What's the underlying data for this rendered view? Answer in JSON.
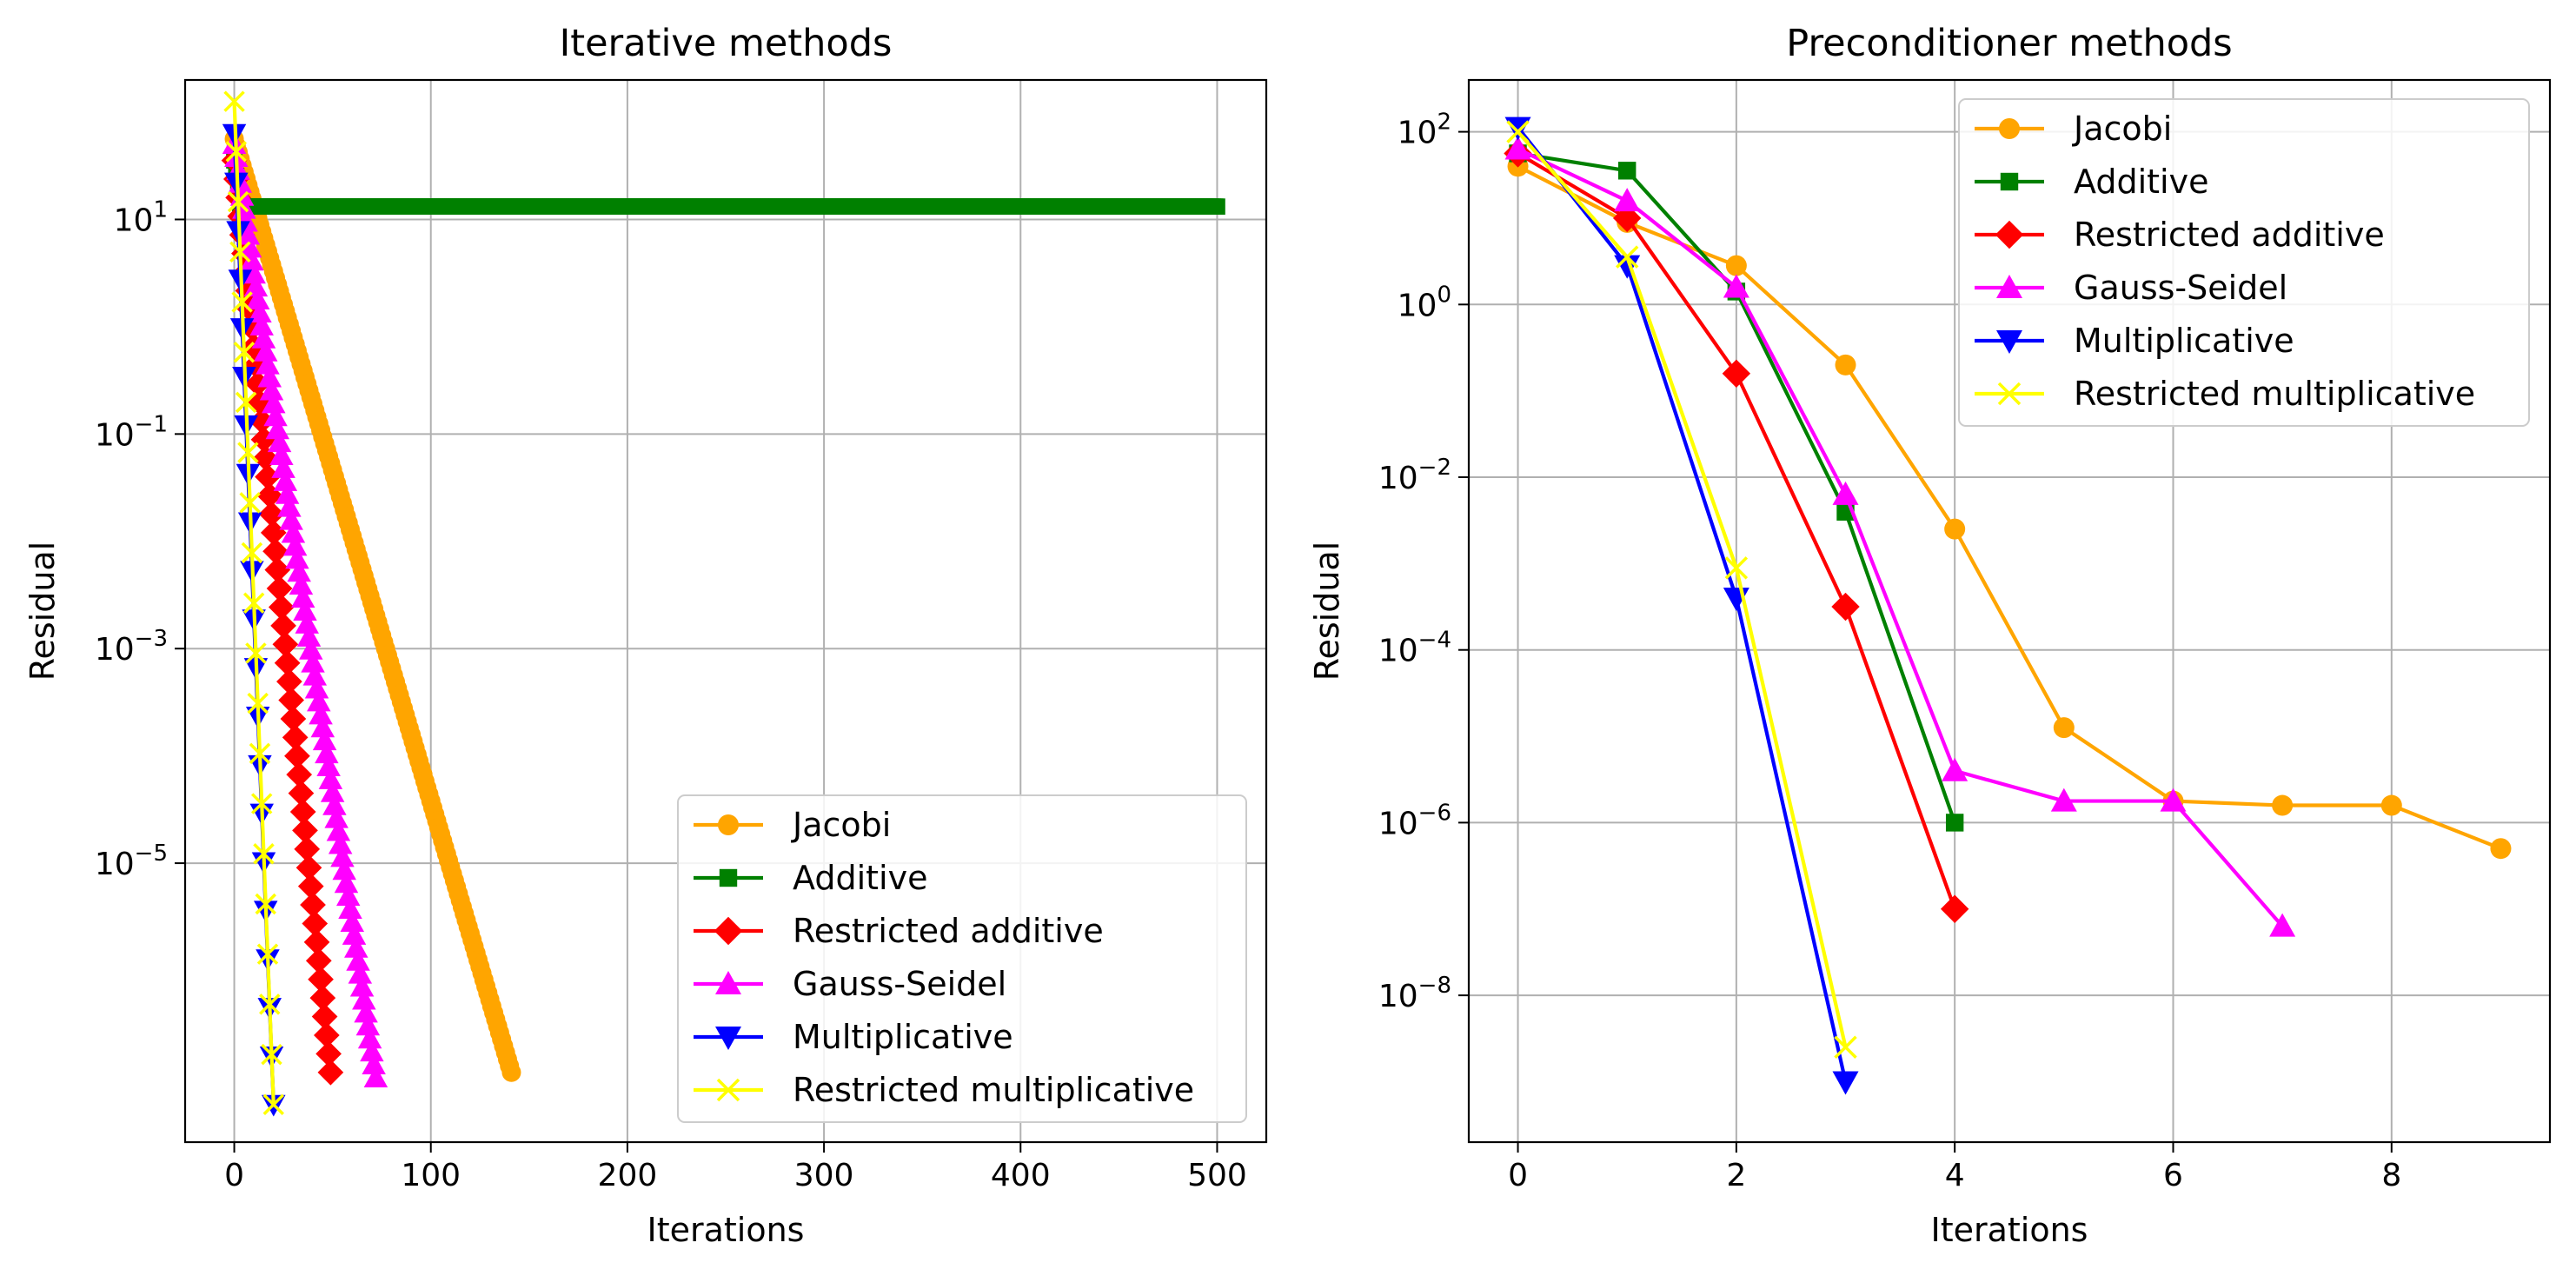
{
  "figure": {
    "background": "#ffffff",
    "grid_color": "#b0b0b0"
  },
  "chart_data": [
    {
      "type": "line",
      "title": "Iterative methods",
      "xlabel": "Iterations",
      "ylabel": "Residual",
      "yscale": "log",
      "xlim": [
        -25,
        525
      ],
      "ylim_exp": [
        -7.6,
        2.3
      ],
      "grid": true,
      "legend_position": "lower-right",
      "x_ticks": [
        {
          "value": 0,
          "label": "0"
        },
        {
          "value": 100,
          "label": "100"
        },
        {
          "value": 200,
          "label": "200"
        },
        {
          "value": 300,
          "label": "300"
        },
        {
          "value": 400,
          "label": "400"
        },
        {
          "value": 500,
          "label": "500"
        }
      ],
      "y_ticks": [
        {
          "exp": 1,
          "base": "10",
          "power": "1"
        },
        {
          "exp": -1,
          "base": "10",
          "power": "−1"
        },
        {
          "exp": -3,
          "base": "10",
          "power": "−3"
        },
        {
          "exp": -5,
          "base": "10",
          "power": "−5"
        }
      ],
      "series": [
        {
          "name": "Jacobi",
          "color": "#ffa500",
          "marker": "circle",
          "model": {
            "kind": "linear",
            "start": [
              0,
              1.75
            ],
            "end": [
              141,
              -6.95
            ]
          }
        },
        {
          "name": "Additive",
          "color": "#008000",
          "marker": "square",
          "model": {
            "kind": "plateau",
            "start": [
              0,
              1.55
            ],
            "plateau": 1.12,
            "plateau_from": 3,
            "end_x": 500
          }
        },
        {
          "name": "Restricted additive",
          "color": "#ff0000",
          "marker": "diamond",
          "model": {
            "kind": "linear",
            "start": [
              0,
              1.55
            ],
            "end": [
              49,
              -6.95
            ]
          }
        },
        {
          "name": "Gauss-Seidel",
          "color": "#ff00ff",
          "marker": "triangle-up",
          "model": {
            "kind": "linear",
            "start": [
              0,
              1.7
            ],
            "end": [
              72,
              -7.0
            ]
          }
        },
        {
          "name": "Multiplicative",
          "color": "#0000ff",
          "marker": "triangle-down",
          "model": {
            "kind": "linear",
            "start": [
              0,
              1.8
            ],
            "end": [
              20,
              -7.25
            ]
          }
        },
        {
          "name": "Restricted multiplicative",
          "color": "#ffff00",
          "marker": "x",
          "model": {
            "kind": "linear",
            "start": [
              0,
              2.1
            ],
            "end": [
              20,
              -7.25
            ]
          }
        }
      ]
    },
    {
      "type": "line",
      "title": "Preconditioner methods",
      "xlabel": "Iterations",
      "ylabel": "Residual",
      "yscale": "log",
      "xlim": [
        -0.45,
        9.45
      ],
      "ylim_exp": [
        -9.7,
        2.6
      ],
      "grid": true,
      "legend_position": "upper-right",
      "x_ticks": [
        {
          "value": 0,
          "label": "0"
        },
        {
          "value": 2,
          "label": "2"
        },
        {
          "value": 4,
          "label": "4"
        },
        {
          "value": 6,
          "label": "6"
        },
        {
          "value": 8,
          "label": "8"
        }
      ],
      "y_ticks": [
        {
          "exp": 2,
          "base": "10",
          "power": "2"
        },
        {
          "exp": 0,
          "base": "10",
          "power": "0"
        },
        {
          "exp": -2,
          "base": "10",
          "power": "−2"
        },
        {
          "exp": -4,
          "base": "10",
          "power": "−4"
        },
        {
          "exp": -6,
          "base": "10",
          "power": "−6"
        },
        {
          "exp": -8,
          "base": "10",
          "power": "−8"
        }
      ],
      "series": [
        {
          "name": "Jacobi",
          "color": "#ffa500",
          "marker": "circle",
          "x": [
            0,
            1,
            2,
            3,
            4,
            5,
            6,
            7,
            8,
            9
          ],
          "y_exp": [
            1.6,
            0.95,
            0.45,
            -0.7,
            -2.6,
            -4.9,
            -5.75,
            -5.8,
            -5.8,
            -6.3
          ]
        },
        {
          "name": "Additive",
          "color": "#008000",
          "marker": "square",
          "x": [
            0,
            1,
            2,
            3,
            4
          ],
          "y_exp": [
            1.75,
            1.55,
            0.15,
            -2.4,
            -6.0
          ]
        },
        {
          "name": "Restricted additive",
          "color": "#ff0000",
          "marker": "diamond",
          "x": [
            0,
            1,
            2,
            3,
            4
          ],
          "y_exp": [
            1.75,
            1.0,
            -0.8,
            -3.5,
            -7.0
          ]
        },
        {
          "name": "Gauss-Seidel",
          "color": "#ff00ff",
          "marker": "triangle-up",
          "x": [
            0,
            1,
            2,
            3,
            4,
            5,
            6,
            7
          ],
          "y_exp": [
            1.8,
            1.2,
            0.2,
            -2.2,
            -5.4,
            -5.75,
            -5.75,
            -7.2
          ]
        },
        {
          "name": "Multiplicative",
          "color": "#0000ff",
          "marker": "triangle-down",
          "x": [
            0,
            1,
            2,
            3
          ],
          "y_exp": [
            2.05,
            0.45,
            -3.4,
            -9.0
          ]
        },
        {
          "name": "Restricted multiplicative",
          "color": "#ffff00",
          "marker": "x",
          "x": [
            0,
            1,
            2,
            3
          ],
          "y_exp": [
            2.0,
            0.55,
            -3.05,
            -8.6
          ]
        }
      ]
    }
  ]
}
